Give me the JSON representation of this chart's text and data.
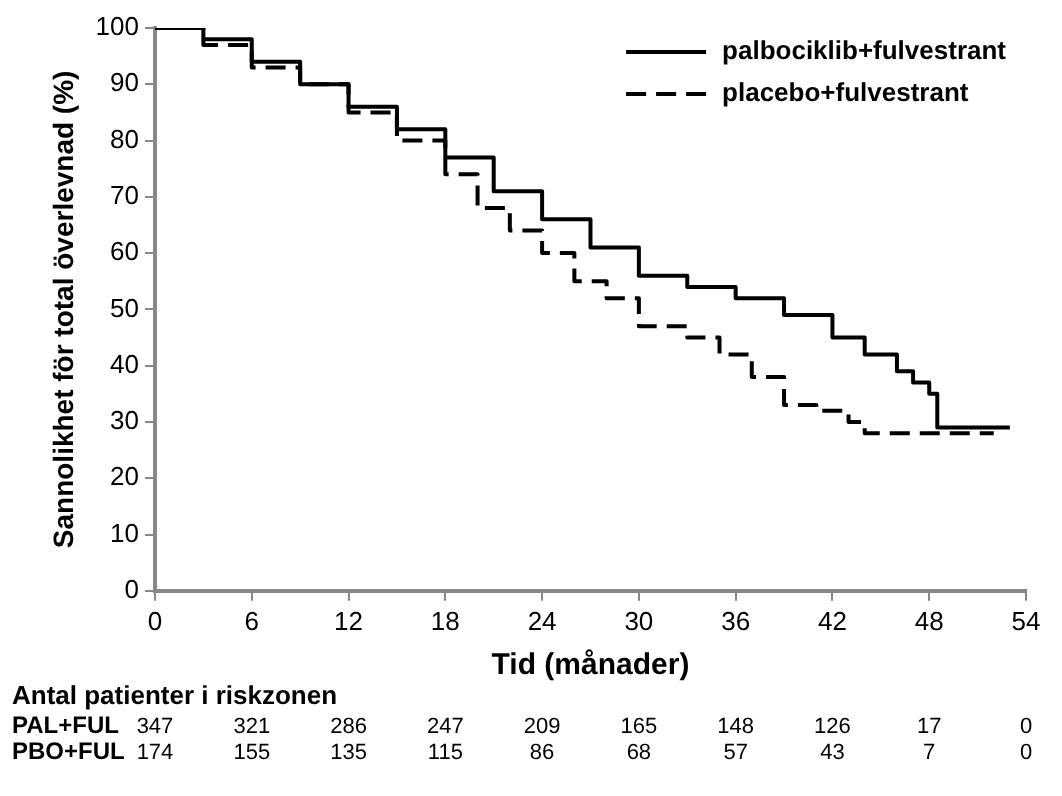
{
  "chart_data": {
    "type": "step",
    "xlabel": "Tid (månader)",
    "ylabel": "Sannolikhet för total överlevnad (%)",
    "xlim": [
      0,
      54
    ],
    "xticks": [
      0,
      6,
      12,
      18,
      24,
      30,
      36,
      42,
      48,
      54
    ],
    "ylim": [
      0,
      100
    ],
    "yticks": [
      0,
      10,
      20,
      30,
      40,
      50,
      60,
      70,
      80,
      90,
      100
    ],
    "legend": "top right",
    "grid": false,
    "series": [
      {
        "name": "palbociklib+fulvestrant",
        "color": "#000000",
        "line_style": "solid",
        "x": [
          0,
          3,
          6,
          9,
          12,
          15,
          18,
          21,
          24,
          27,
          30,
          33,
          36,
          39,
          42,
          44,
          46,
          47,
          48,
          48.5,
          53
        ],
        "values": [
          100,
          98,
          94,
          90,
          86,
          82,
          77,
          71,
          66,
          61,
          56,
          54,
          52,
          49,
          45,
          42,
          39,
          37,
          35,
          29,
          29
        ]
      },
      {
        "name": "placebo+fulvestrant",
        "color": "#000000",
        "line_style": "dashed",
        "x": [
          0,
          3,
          6,
          9,
          12,
          15,
          18,
          20,
          22,
          24,
          26,
          28,
          30,
          33,
          35,
          37,
          39,
          41,
          43,
          44,
          48,
          52
        ],
        "values": [
          100,
          97,
          93,
          90,
          85,
          80,
          74,
          68,
          64,
          60,
          55,
          52,
          47,
          45,
          42,
          38,
          33,
          32,
          30,
          28,
          28,
          28
        ]
      }
    ],
    "annotations": [
      "Antal patienter i riskzonen",
      "PAL+FUL",
      "347",
      "321",
      "286",
      "247",
      "209",
      "165",
      "148",
      "126",
      "17",
      "0",
      "PBO+FUL",
      "174",
      "155",
      "135",
      "115",
      "86",
      "68",
      "57",
      "43",
      "7",
      "0"
    ]
  }
}
